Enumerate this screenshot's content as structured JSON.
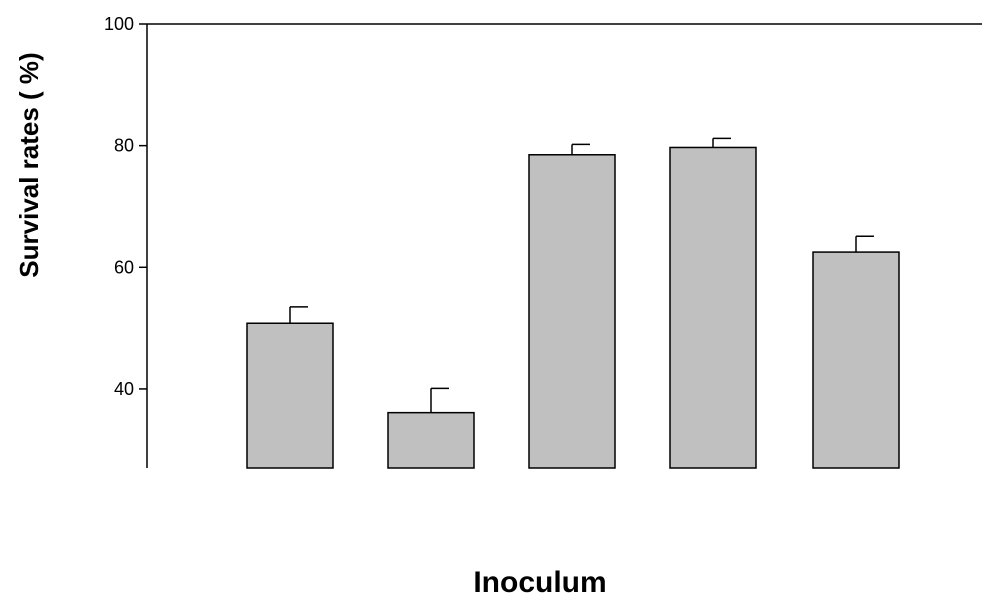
{
  "chart_data": {
    "type": "bar",
    "title": "",
    "xlabel": "Inoculum",
    "ylabel": "Survival rates ( %)",
    "ylim": [
      27,
      100
    ],
    "yticks": [
      40,
      60,
      80,
      100
    ],
    "categories": [
      "",
      "",
      "",
      "",
      ""
    ],
    "values": [
      50.8,
      36.1,
      78.5,
      79.7,
      62.5
    ],
    "errors": [
      2.7,
      4.0,
      1.7,
      1.5,
      2.6
    ],
    "bar_color": "#c0c0c0",
    "grid": false,
    "legend": "none"
  }
}
